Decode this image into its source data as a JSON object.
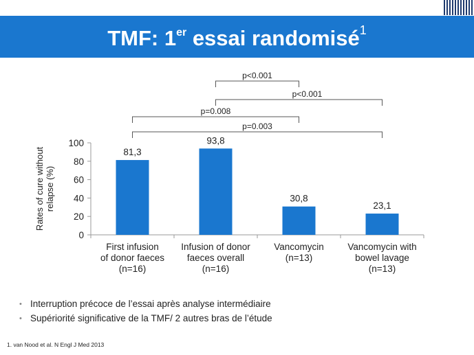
{
  "slide": {
    "title_main": "TMF: 1",
    "title_sup": "er",
    "title_rest": " essai randomisé",
    "title_note": "1",
    "bullets": [
      "Interruption précoce de l’essai après analyse intermédiaire",
      "Supériorité significative de la TMF/ 2 autres bras de l’étude"
    ],
    "footnote": "1.  van Nood  et al. N Engl J Med 2013"
  },
  "colors": {
    "title_bar": "#1a77cf",
    "bar": "#1a77cf",
    "bracket": "#555555"
  },
  "chart_data": {
    "type": "bar",
    "ylabel_lines": [
      "Rates of cure without",
      "relapse (%)"
    ],
    "ylim": [
      0,
      100
    ],
    "yticks": [
      0,
      20,
      40,
      60,
      80,
      100
    ],
    "grid": false,
    "categories": [
      [
        "First infusion",
        "of donor faeces",
        "(n=16)"
      ],
      [
        "Infusion of donor",
        "faeces overall",
        "(n=16)"
      ],
      [
        "Vancomycin",
        "(n=13)"
      ],
      [
        "Vancomycin with",
        "bowel lavage",
        "(n=13)"
      ]
    ],
    "values": [
      81.3,
      93.8,
      30.8,
      23.1
    ],
    "value_labels": [
      "81,3",
      "93,8",
      "30,8",
      "23,1"
    ],
    "annotations": [
      {
        "label": "p<0.001",
        "from": 1,
        "to": 2
      },
      {
        "label": "p<0.001",
        "from": 1,
        "to": 3
      },
      {
        "label": "p=0.008",
        "from": 0,
        "to": 2
      },
      {
        "label": "p=0.003",
        "from": 0,
        "to": 3
      }
    ]
  }
}
